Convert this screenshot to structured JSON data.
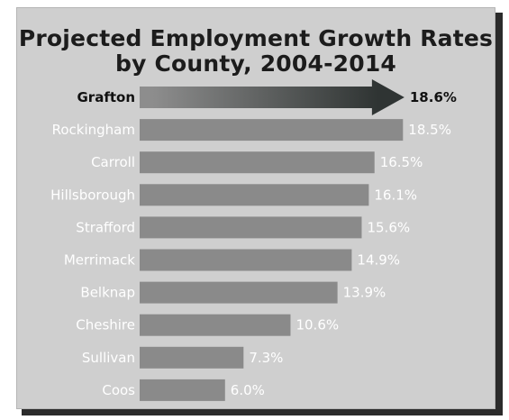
{
  "chart_data": {
    "type": "bar",
    "orientation": "horizontal",
    "title_lines": [
      "Projected Employment Growth Rates",
      "by County, 2004-2014"
    ],
    "categories": [
      "Grafton",
      "Rockingham",
      "Carroll",
      "Hillsborough",
      "Strafford",
      "Merrimack",
      "Belknap",
      "Cheshire",
      "Sullivan",
      "Coos"
    ],
    "values": [
      18.6,
      18.5,
      16.5,
      16.1,
      15.6,
      14.9,
      13.9,
      10.6,
      7.3,
      6.0
    ],
    "value_labels": [
      "18.6%",
      "18.5%",
      "16.5%",
      "16.1%",
      "15.6%",
      "14.9%",
      "13.9%",
      "10.6%",
      "7.3%",
      "6.0%"
    ],
    "highlight": "Grafton",
    "grid": false,
    "legend": "none",
    "colors": {
      "background": "#cfcfcf",
      "bar": "#8a8a8a",
      "highlight_gradient": [
        "#8d8d8d",
        "#2f3433"
      ],
      "label_light": "#ffffff",
      "label_dark": "#111111"
    }
  }
}
